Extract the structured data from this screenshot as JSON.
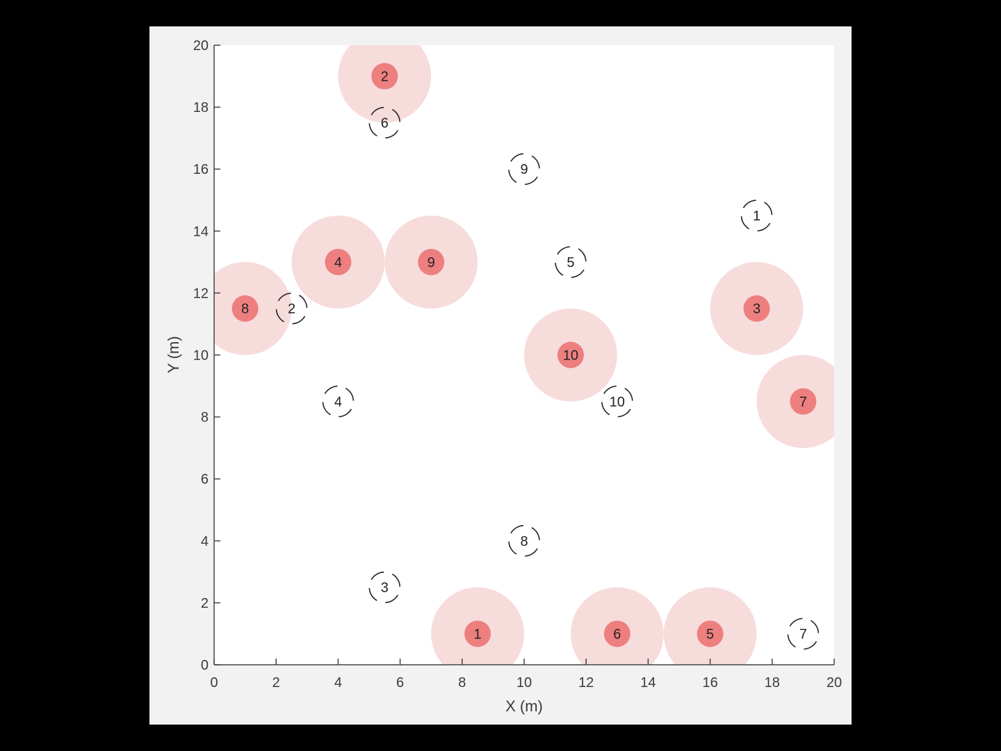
{
  "chart_data": {
    "type": "scatter",
    "title": "",
    "xlabel": "X (m)",
    "ylabel": "Y (m)",
    "xlim": [
      0,
      20
    ],
    "ylim": [
      0,
      20
    ],
    "xticks": [
      0,
      2,
      4,
      6,
      8,
      10,
      12,
      14,
      16,
      18,
      20
    ],
    "yticks": [
      0,
      2,
      4,
      6,
      8,
      10,
      12,
      14,
      16,
      18,
      20
    ],
    "grid": false,
    "colors": {
      "filled_marker": "#ee7f7f",
      "halo": "#f7dcdc",
      "dashed_marker": "#222222",
      "axes_background": "#ffffff",
      "figure_background": "#f2f2f2"
    },
    "halo_radius": 1.5,
    "series": [
      {
        "marker": "filled-circle-with-halo",
        "points": [
          {
            "label": "1",
            "x": 8.5,
            "y": 1.0
          },
          {
            "label": "2",
            "x": 5.5,
            "y": 19.0
          },
          {
            "label": "3",
            "x": 17.5,
            "y": 11.5
          },
          {
            "label": "4",
            "x": 4.0,
            "y": 13.0
          },
          {
            "label": "5",
            "x": 16.0,
            "y": 1.0
          },
          {
            "label": "6",
            "x": 13.0,
            "y": 1.0
          },
          {
            "label": "7",
            "x": 19.0,
            "y": 8.5
          },
          {
            "label": "8",
            "x": 1.0,
            "y": 11.5
          },
          {
            "label": "9",
            "x": 7.0,
            "y": 13.0
          },
          {
            "label": "10",
            "x": 11.5,
            "y": 10.0
          }
        ]
      },
      {
        "marker": "dashed-circle",
        "points": [
          {
            "label": "1",
            "x": 17.5,
            "y": 14.5
          },
          {
            "label": "2",
            "x": 2.5,
            "y": 11.5
          },
          {
            "label": "3",
            "x": 5.5,
            "y": 2.5
          },
          {
            "label": "4",
            "x": 4.0,
            "y": 8.5
          },
          {
            "label": "5",
            "x": 11.5,
            "y": 13.0
          },
          {
            "label": "6",
            "x": 5.5,
            "y": 17.5
          },
          {
            "label": "7",
            "x": 19.0,
            "y": 1.0
          },
          {
            "label": "8",
            "x": 10.0,
            "y": 4.0
          },
          {
            "label": "9",
            "x": 10.0,
            "y": 16.0
          },
          {
            "label": "10",
            "x": 13.0,
            "y": 8.5
          }
        ]
      }
    ]
  }
}
